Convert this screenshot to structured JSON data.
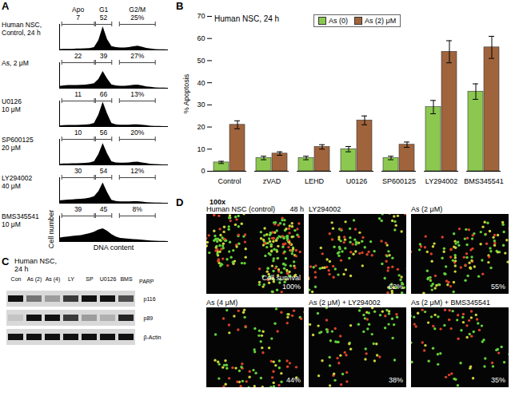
{
  "chart_data": [
    {
      "type": "area",
      "panel": "A",
      "title": "Human NSC,\nControl, 24 h",
      "color": "#000000",
      "x": [
        0,
        4,
        8,
        12,
        16,
        20,
        24,
        28,
        32,
        36,
        40,
        44,
        48,
        52,
        56,
        60,
        64,
        68,
        72,
        76,
        80,
        84,
        88,
        92,
        96,
        100
      ],
      "values": [
        2,
        3,
        3,
        3,
        4,
        4,
        5,
        6,
        10,
        40,
        100,
        45,
        15,
        10,
        9,
        9,
        10,
        14,
        16,
        12,
        7,
        4,
        2,
        1,
        1,
        0
      ],
      "xlim": [
        0,
        100
      ],
      "ylim": [
        0,
        110
      ],
      "tick_labels": false,
      "gate_names": [
        "Apo",
        "G1",
        "G2/M"
      ],
      "gate_ranges": [
        [
          2,
          32
        ],
        [
          33,
          48
        ],
        [
          55,
          88
        ]
      ],
      "gate_values": [
        7,
        52,
        25
      ],
      "gate_value_labels": [
        "7",
        "52",
        "25%"
      ]
    },
    {
      "type": "area",
      "title": "As, 2 μM",
      "color": "#000000",
      "x": [
        0,
        4,
        8,
        12,
        16,
        20,
        24,
        28,
        32,
        36,
        40,
        44,
        48,
        52,
        56,
        60,
        64,
        68,
        72,
        76,
        80,
        84,
        88,
        92,
        96,
        100
      ],
      "values": [
        8,
        10,
        12,
        12,
        12,
        13,
        14,
        16,
        20,
        38,
        72,
        40,
        15,
        10,
        9,
        9,
        10,
        13,
        14,
        10,
        6,
        4,
        2,
        1,
        1,
        0
      ],
      "xlim": [
        0,
        100
      ],
      "ylim": [
        0,
        110
      ],
      "tick_labels": false,
      "gate_ranges": [
        [
          2,
          32
        ],
        [
          33,
          48
        ],
        [
          55,
          88
        ]
      ],
      "gate_values": [
        22,
        39,
        27
      ],
      "gate_value_labels": [
        "22",
        "39",
        "27%"
      ]
    },
    {
      "type": "area",
      "title": "U0126\n10 μM",
      "color": "#000000",
      "x": [
        0,
        4,
        8,
        12,
        16,
        20,
        24,
        28,
        32,
        36,
        40,
        44,
        48,
        52,
        56,
        60,
        64,
        68,
        72,
        76,
        80,
        84,
        88,
        92,
        96,
        100
      ],
      "values": [
        3,
        4,
        5,
        5,
        5,
        6,
        7,
        9,
        14,
        50,
        105,
        55,
        14,
        8,
        6,
        6,
        6,
        8,
        8,
        6,
        4,
        2,
        1,
        1,
        0,
        0
      ],
      "xlim": [
        0,
        100
      ],
      "ylim": [
        0,
        110
      ],
      "tick_labels": false,
      "gate_ranges": [
        [
          2,
          32
        ],
        [
          33,
          48
        ],
        [
          55,
          88
        ]
      ],
      "gate_values": [
        11,
        66,
        13
      ],
      "gate_value_labels": [
        "11",
        "66",
        "13%"
      ]
    },
    {
      "type": "area",
      "title": "SP600125\n20 μM",
      "color": "#000000",
      "x": [
        0,
        4,
        8,
        12,
        16,
        20,
        24,
        28,
        32,
        36,
        40,
        44,
        48,
        52,
        56,
        60,
        64,
        68,
        72,
        76,
        80,
        84,
        88,
        92,
        96,
        100
      ],
      "values": [
        3,
        4,
        4,
        5,
        5,
        6,
        7,
        9,
        14,
        45,
        92,
        48,
        14,
        9,
        8,
        8,
        9,
        11,
        12,
        9,
        6,
        3,
        2,
        1,
        0,
        0
      ],
      "xlim": [
        0,
        100
      ],
      "ylim": [
        0,
        110
      ],
      "tick_labels": false,
      "gate_ranges": [
        [
          2,
          32
        ],
        [
          33,
          48
        ],
        [
          55,
          88
        ]
      ],
      "gate_values": [
        10,
        56,
        20
      ],
      "gate_value_labels": [
        "10",
        "56",
        "20%"
      ]
    },
    {
      "type": "area",
      "title": "LY294002\n40 μM",
      "color": "#000000",
      "x": [
        0,
        4,
        8,
        12,
        16,
        20,
        24,
        28,
        32,
        36,
        40,
        44,
        48,
        52,
        56,
        60,
        64,
        68,
        72,
        76,
        80,
        84,
        88,
        92,
        96,
        100
      ],
      "values": [
        10,
        12,
        14,
        15,
        16,
        17,
        19,
        22,
        28,
        50,
        88,
        46,
        13,
        8,
        6,
        6,
        6,
        7,
        7,
        5,
        3,
        2,
        1,
        1,
        0,
        0
      ],
      "xlim": [
        0,
        100
      ],
      "ylim": [
        0,
        110
      ],
      "tick_labels": false,
      "gate_ranges": [
        [
          2,
          32
        ],
        [
          33,
          48
        ],
        [
          55,
          88
        ]
      ],
      "gate_values": [
        30,
        54,
        12
      ],
      "gate_value_labels": [
        "30",
        "54",
        "12%"
      ]
    },
    {
      "type": "area",
      "title": "BMS345541\n10 μM",
      "color": "#000000",
      "x": [
        0,
        4,
        8,
        12,
        16,
        20,
        24,
        28,
        32,
        36,
        40,
        44,
        48,
        52,
        56,
        60,
        64,
        68,
        72,
        76,
        80,
        84,
        88,
        92,
        96,
        100
      ],
      "values": [
        15,
        18,
        20,
        22,
        24,
        26,
        30,
        34,
        40,
        50,
        55,
        45,
        30,
        20,
        14,
        12,
        10,
        9,
        8,
        6,
        4,
        3,
        2,
        1,
        1,
        0
      ],
      "xlim": [
        0,
        100
      ],
      "ylim": [
        0,
        110
      ],
      "tick_labels": false,
      "xlabel": "DNA content",
      "ylabel": "Cell number",
      "gate_ranges": [
        [
          2,
          32
        ],
        [
          33,
          48
        ],
        [
          55,
          88
        ]
      ],
      "gate_values": [
        39,
        45,
        8
      ],
      "gate_value_labels": [
        "39",
        "45",
        "8%"
      ]
    },
    {
      "type": "bar",
      "panel": "B",
      "title": "Human NSC, 24 h",
      "ylabel": "% Apoptosis",
      "categories": [
        "Control",
        "zVAD",
        "LEHD",
        "U0126",
        "SP600125",
        "LY294002",
        "BMS345541"
      ],
      "series": [
        {
          "name": "As (0)",
          "color": "#8cc850",
          "values": [
            4,
            6,
            6,
            10,
            6,
            29,
            36
          ],
          "errors": [
            0.5,
            0.8,
            0.8,
            1.2,
            0.8,
            3,
            3.5
          ]
        },
        {
          "name": "As (2) μM",
          "color": "#a0643c",
          "values": [
            21,
            8,
            11,
            23,
            12,
            54,
            56
          ],
          "errors": [
            1.8,
            0.8,
            1,
            2,
            1.2,
            5,
            5
          ]
        }
      ],
      "ylim": [
        0,
        70
      ],
      "yticks": [
        0,
        10,
        20,
        30,
        40,
        50,
        60,
        70
      ],
      "grid": false,
      "legend": "top"
    }
  ],
  "blot": {
    "panel": "C",
    "title": "Human NSC,\n24 h",
    "lanes": [
      "Con",
      "As (2)",
      "As (4)",
      "LY",
      "SP",
      "U0126",
      "BMS"
    ],
    "group_label": "PARP",
    "bands": [
      {
        "name": "p116",
        "intensity": [
          1,
          0.5,
          0.3,
          0.8,
          1,
          1,
          0.7
        ]
      },
      {
        "name": "p89",
        "intensity": [
          0.1,
          1,
          1,
          0.8,
          0.3,
          0.2,
          0.9
        ]
      },
      {
        "name": "β-Actin",
        "intensity": [
          1,
          1,
          1,
          1,
          1,
          1,
          1
        ]
      }
    ]
  },
  "micrographs": {
    "panel": "D",
    "magnification": "100x",
    "survival_caption": "Cell survival",
    "images": [
      {
        "label": "Human NSC (control)",
        "time": "48 h",
        "survival": 100,
        "survival_label": "100%"
      },
      {
        "label": "LY294002",
        "survival": 62,
        "survival_label": "62%"
      },
      {
        "label": "As (2 μM)",
        "survival": 55,
        "survival_label": "55%"
      },
      {
        "label": "As (4 μM)",
        "survival": 44,
        "survival_label": "44%"
      },
      {
        "label": "As (2 μM) + LY294002",
        "survival": 38,
        "survival_label": "38%"
      },
      {
        "label": "As (2 μM) + BMS345541",
        "survival": 35,
        "survival_label": "35%"
      }
    ]
  }
}
